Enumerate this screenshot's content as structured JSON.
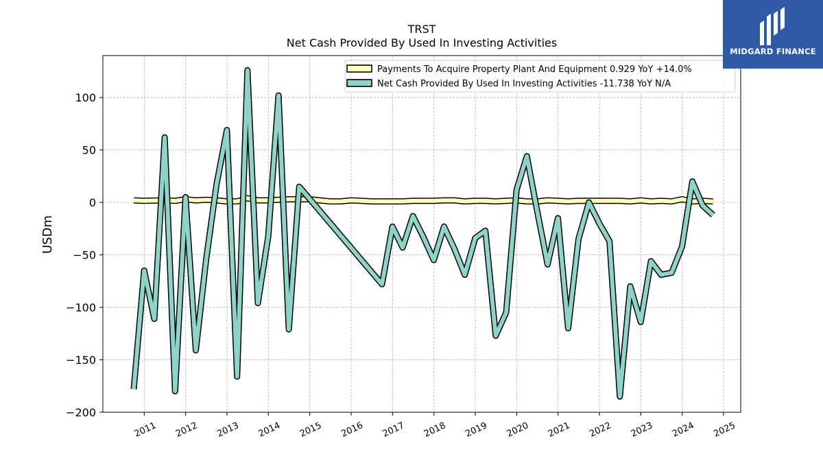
{
  "brand": {
    "name": "MIDGARD FINANCE",
    "color": "#2f5aa8",
    "icon": "midgard-logo-icon"
  },
  "chart_data": {
    "type": "line",
    "title": "TRST",
    "subtitle": "Net Cash Provided By Used In Investing Activities",
    "xlabel": "",
    "ylabel": "USDm",
    "xlim": [
      "2010-01-01",
      "2025-06-01"
    ],
    "ylim": [
      -200,
      140
    ],
    "x_ticks": [
      "2011",
      "2012",
      "2013",
      "2014",
      "2015",
      "2016",
      "2017",
      "2018",
      "2019",
      "2020",
      "2021",
      "2022",
      "2023",
      "2024",
      "2025"
    ],
    "y_ticks": [
      -200,
      -150,
      -100,
      -50,
      0,
      50,
      100
    ],
    "y_tick_labels": [
      "−200",
      "−150",
      "−100",
      "−50",
      "0",
      "50",
      "100"
    ],
    "grid": true,
    "legend_position": "top-right",
    "series": [
      {
        "name": "Payments To Acquire Property Plant And Equipment  0.929 YoY +14.0%",
        "color": "#ffffbf",
        "points": [
          [
            "2010-09-30",
            2
          ],
          [
            "2010-12-31",
            1.5
          ],
          [
            "2011-03-31",
            1.8
          ],
          [
            "2011-06-30",
            2
          ],
          [
            "2011-09-30",
            1.5
          ],
          [
            "2011-12-31",
            3
          ],
          [
            "2012-03-31",
            2
          ],
          [
            "2012-06-30",
            2.5
          ],
          [
            "2012-09-30",
            2
          ],
          [
            "2012-12-31",
            1
          ],
          [
            "2013-03-31",
            1
          ],
          [
            "2013-06-30",
            4
          ],
          [
            "2013-09-30",
            2
          ],
          [
            "2013-12-31",
            2
          ],
          [
            "2014-03-31",
            2.5
          ],
          [
            "2014-06-30",
            3
          ],
          [
            "2014-09-30",
            3
          ],
          [
            "2014-12-31",
            3
          ],
          [
            "2015-03-31",
            2
          ],
          [
            "2015-06-30",
            1
          ],
          [
            "2015-09-30",
            1
          ],
          [
            "2015-12-31",
            2
          ],
          [
            "2016-03-31",
            1.5
          ],
          [
            "2016-06-30",
            1
          ],
          [
            "2016-09-30",
            1
          ],
          [
            "2016-12-31",
            1
          ],
          [
            "2017-03-31",
            1
          ],
          [
            "2017-06-30",
            1.5
          ],
          [
            "2017-09-30",
            1.5
          ],
          [
            "2017-12-31",
            1.5
          ],
          [
            "2018-03-31",
            2
          ],
          [
            "2018-06-30",
            2
          ],
          [
            "2018-09-30",
            1
          ],
          [
            "2018-12-31",
            1.5
          ],
          [
            "2019-03-31",
            1.5
          ],
          [
            "2019-06-30",
            1
          ],
          [
            "2019-09-30",
            1.5
          ],
          [
            "2019-12-31",
            2
          ],
          [
            "2020-03-31",
            1
          ],
          [
            "2020-06-30",
            1
          ],
          [
            "2020-09-30",
            2
          ],
          [
            "2020-12-31",
            1.5
          ],
          [
            "2021-03-31",
            1
          ],
          [
            "2021-06-30",
            1.5
          ],
          [
            "2021-09-30",
            1.5
          ],
          [
            "2021-12-31",
            1.5
          ],
          [
            "2022-03-31",
            1.5
          ],
          [
            "2022-06-30",
            1.5
          ],
          [
            "2022-09-30",
            1
          ],
          [
            "2022-12-31",
            2
          ],
          [
            "2023-03-31",
            1
          ],
          [
            "2023-06-30",
            1.5
          ],
          [
            "2023-09-30",
            1
          ],
          [
            "2023-12-31",
            3
          ],
          [
            "2024-03-31",
            1
          ],
          [
            "2024-06-30",
            1.5
          ],
          [
            "2024-09-30",
            0.929
          ]
        ]
      },
      {
        "name": "Net Cash Provided By Used In Investing Activities  -11.738 YoY N/A",
        "color": "#8dd3c7",
        "points": [
          [
            "2010-09-30",
            -178
          ],
          [
            "2010-12-31",
            -65
          ],
          [
            "2011-03-31",
            -111
          ],
          [
            "2011-06-30",
            62
          ],
          [
            "2011-09-30",
            -180
          ],
          [
            "2011-12-31",
            5
          ],
          [
            "2012-03-31",
            -141
          ],
          [
            "2012-06-30",
            -55
          ],
          [
            "2012-09-30",
            17
          ],
          [
            "2012-12-31",
            69
          ],
          [
            "2013-03-31",
            -166
          ],
          [
            "2013-06-30",
            126
          ],
          [
            "2013-09-30",
            -96
          ],
          [
            "2013-12-31",
            -32
          ],
          [
            "2014-03-31",
            102
          ],
          [
            "2014-06-30",
            -121
          ],
          [
            "2014-09-30",
            15
          ],
          [
            "2016-09-30",
            -78
          ],
          [
            "2016-12-31",
            -23
          ],
          [
            "2017-03-31",
            -43
          ],
          [
            "2017-06-30",
            -13
          ],
          [
            "2017-09-30",
            -33
          ],
          [
            "2017-12-31",
            -55
          ],
          [
            "2018-03-31",
            -23
          ],
          [
            "2018-06-30",
            -44
          ],
          [
            "2018-09-30",
            -69
          ],
          [
            "2018-12-31",
            -34
          ],
          [
            "2019-03-31",
            -27
          ],
          [
            "2019-06-30",
            -127
          ],
          [
            "2019-09-30",
            -105
          ],
          [
            "2019-12-31",
            12
          ],
          [
            "2020-03-31",
            44
          ],
          [
            "2020-06-30",
            -8
          ],
          [
            "2020-09-30",
            -59
          ],
          [
            "2020-12-31",
            -15
          ],
          [
            "2021-03-31",
            -120
          ],
          [
            "2021-06-30",
            -35
          ],
          [
            "2021-09-30",
            0
          ],
          [
            "2021-12-31",
            -20
          ],
          [
            "2022-03-31",
            -37
          ],
          [
            "2022-06-30",
            -185
          ],
          [
            "2022-09-30",
            -80
          ],
          [
            "2022-12-31",
            -114
          ],
          [
            "2023-03-31",
            -56
          ],
          [
            "2023-06-30",
            -69
          ],
          [
            "2023-09-30",
            -67
          ],
          [
            "2023-12-31",
            -42
          ],
          [
            "2024-03-31",
            20
          ],
          [
            "2024-06-30",
            -3
          ],
          [
            "2024-09-30",
            -12
          ]
        ]
      }
    ]
  }
}
